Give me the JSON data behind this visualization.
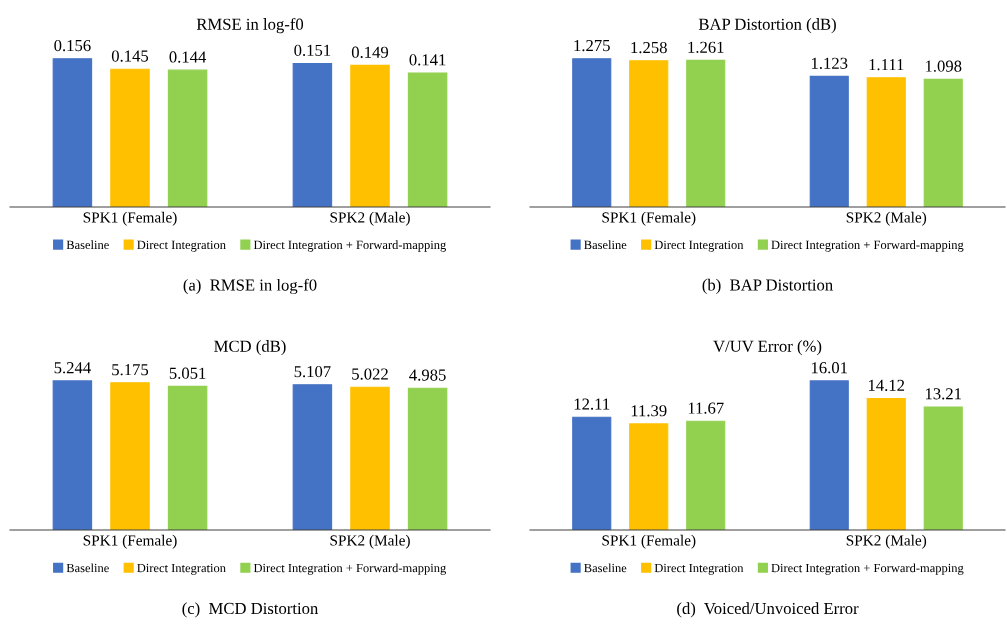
{
  "chart_data": [
    {
      "type": "bar",
      "title": "RMSE in log-f0",
      "categories": [
        "SPK1 (Female)",
        "SPK2 (Male)"
      ],
      "series": [
        {
          "name": "Baseline",
          "color": "#4472c4",
          "values": [
            0.156,
            0.151
          ]
        },
        {
          "name": "Direct Integration",
          "color": "#ffc000",
          "values": [
            0.145,
            0.149
          ]
        },
        {
          "name": "Direct Integration + Forward-mapping",
          "color": "#92d050",
          "values": [
            0.144,
            0.141
          ]
        }
      ],
      "tick_labels": "x",
      "data_labels": true,
      "legend": "bottom",
      "annotations": [
        "(a)  RMSE in log-f0"
      ]
    },
    {
      "type": "bar",
      "title": "BAP Distortion (dB)",
      "categories": [
        "SPK1 (Female)",
        "SPK2 (Male)"
      ],
      "series": [
        {
          "name": "Baseline",
          "color": "#4472c4",
          "values": [
            1.275,
            1.123
          ]
        },
        {
          "name": "Direct Integration",
          "color": "#ffc000",
          "values": [
            1.258,
            1.111
          ]
        },
        {
          "name": "Direct Integration + Forward-mapping",
          "color": "#92d050",
          "values": [
            1.261,
            1.098
          ]
        }
      ],
      "tick_labels": "x",
      "data_labels": true,
      "legend": "bottom",
      "annotations": [
        "(b)  BAP Distortion"
      ]
    },
    {
      "type": "bar",
      "title": "MCD (dB)",
      "categories": [
        "SPK1 (Female)",
        "SPK2 (Male)"
      ],
      "series": [
        {
          "name": "Baseline",
          "color": "#4472c4",
          "values": [
            5.244,
            5.107
          ]
        },
        {
          "name": "Direct Integration",
          "color": "#ffc000",
          "values": [
            5.175,
            5.022
          ]
        },
        {
          "name": "Direct Integration + Forward-mapping",
          "color": "#92d050",
          "values": [
            5.051,
            4.985
          ]
        }
      ],
      "tick_labels": "x",
      "data_labels": true,
      "legend": "bottom",
      "annotations": [
        "(c)  MCD Distortion"
      ]
    },
    {
      "type": "bar",
      "title": "V/UV Error (%)",
      "categories": [
        "SPK1 (Female)",
        "SPK2 (Male)"
      ],
      "series": [
        {
          "name": "Baseline",
          "color": "#4472c4",
          "values": [
            12.11,
            16.01
          ]
        },
        {
          "name": "Direct Integration",
          "color": "#ffc000",
          "values": [
            11.39,
            14.12
          ]
        },
        {
          "name": "Direct Integration + Forward-mapping",
          "color": "#92d050",
          "values": [
            11.67,
            13.21
          ]
        }
      ],
      "tick_labels": "x",
      "data_labels": true,
      "legend": "bottom",
      "annotations": [
        "(d)  Voiced/Unvoiced Error"
      ]
    }
  ]
}
